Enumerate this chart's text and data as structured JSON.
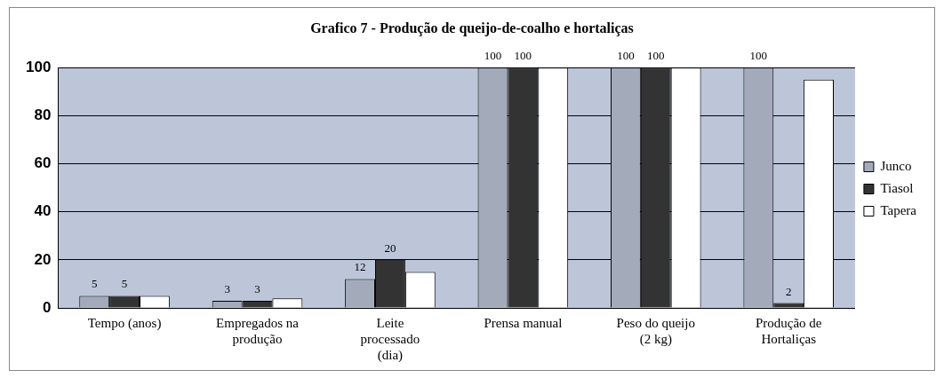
{
  "chart_data": {
    "type": "bar",
    "title": "Grafico 7 - Produção de queijo-de-coalho e hortaliças",
    "categories": [
      "Tempo (anos)",
      "Empregados na produção",
      "Leite processado (dia)",
      "Prensa manual",
      "Peso do queijo (2 kg)",
      "Produção de Hortaliças"
    ],
    "series": [
      {
        "name": "Junco",
        "color": "#a3abbb",
        "values": [
          5,
          3,
          12,
          100,
          100,
          100
        ],
        "value_labels": [
          "5",
          "3",
          "12",
          "100",
          "100",
          "100"
        ]
      },
      {
        "name": "Tiasol",
        "color": "#333333",
        "values": [
          5,
          3,
          20,
          100,
          100,
          2
        ],
        "value_labels": [
          "5",
          "3",
          "20",
          "100",
          "100",
          "2"
        ]
      },
      {
        "name": "Tapera",
        "color": "#ffffff",
        "values": [
          5,
          4,
          15,
          100,
          100,
          95
        ],
        "value_labels": [
          null,
          null,
          null,
          null,
          null,
          null
        ]
      }
    ],
    "ylim": [
      0,
      100
    ],
    "yticks": [
      0,
      20,
      40,
      60,
      80,
      100
    ],
    "grid": "y",
    "legend": "right"
  }
}
